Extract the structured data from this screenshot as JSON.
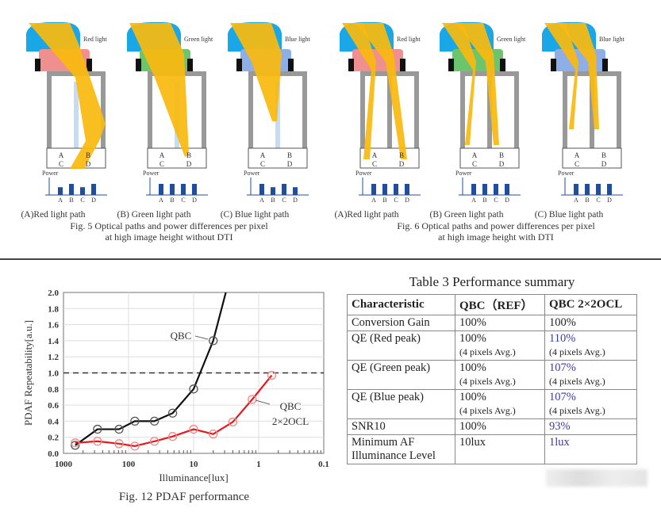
{
  "fig5": {
    "panels": [
      {
        "light_label": "Red light",
        "caption": "(A)Red light path",
        "filter_color": "#f08f8f",
        "power": [
          0.7,
          1,
          0.7,
          1
        ]
      },
      {
        "light_label": "Green light",
        "caption": "(B) Green light path",
        "filter_color": "#6cc56c",
        "power": [
          1,
          1,
          1,
          1
        ]
      },
      {
        "light_label": "Blue light",
        "caption": "(C) Blue light path",
        "filter_color": "#8eaee8",
        "power": [
          1,
          0.7,
          1,
          0.7
        ]
      }
    ],
    "caption_line1": "Fig. 5 Optical paths and power differences per pixel",
    "caption_line2": "at high image height without DTI"
  },
  "fig6": {
    "panels": [
      {
        "light_label": "Red light",
        "caption": "(A)Red light path",
        "filter_color": "#f08f8f",
        "power": [
          1,
          1,
          1,
          1
        ]
      },
      {
        "light_label": "Green light",
        "caption": "(B) Green light path",
        "filter_color": "#6cc56c",
        "power": [
          1,
          1,
          1,
          1
        ]
      },
      {
        "light_label": "Blue light",
        "caption": "(C) Blue light path",
        "filter_color": "#8eaee8",
        "power": [
          1,
          1,
          1,
          1
        ]
      }
    ],
    "caption_line1": "Fig. 6 Optical paths and power differences per pixel",
    "caption_line2": "at high image height with DTI"
  },
  "pixel_labels": [
    "A",
    "B",
    "C",
    "D"
  ],
  "power_label": "Power",
  "colors": {
    "lens": "#1aa7e8",
    "beam": "#f9b90f",
    "bar": "#1f4e9c",
    "qbc": "#111111",
    "ocl": "#e8181d"
  },
  "chart_data": {
    "type": "line",
    "title": "Fig. 12 PDAF performance",
    "xlabel": "Illuminance[lux]",
    "ylabel": "PDAF Repeatability[a.u.]",
    "xscale": "log",
    "xlim": [
      1000,
      0.1
    ],
    "ylim": [
      0,
      2.0
    ],
    "xticks": [
      "1000",
      "100",
      "10",
      "1",
      "0.1"
    ],
    "yticks": [
      "0.0",
      "0.2",
      "0.4",
      "0.6",
      "0.8",
      "1.0",
      "1.2",
      "1.4",
      "1.6",
      "1.8",
      "2.0"
    ],
    "reference_line": 1.0,
    "grid": true,
    "series": [
      {
        "name": "QBC",
        "label": "QBC",
        "x": [
          660,
          300,
          140,
          80,
          40,
          21,
          10,
          5
        ],
        "y": [
          0.1,
          0.3,
          0.3,
          0.4,
          0.4,
          0.5,
          0.8,
          1.4
        ],
        "line_end": {
          "x": 3.2,
          "y": 2.0
        }
      },
      {
        "name": "QBC 2×2OCL",
        "label_line1": "QBC",
        "label_line2": "2×2OCL",
        "x": [
          660,
          300,
          140,
          80,
          40,
          21,
          10,
          5,
          2.5,
          1.26,
          0.63
        ],
        "y": [
          0.13,
          0.15,
          0.12,
          0.09,
          0.15,
          0.21,
          0.3,
          0.24,
          0.39,
          0.67,
          0.97
        ]
      }
    ]
  },
  "table": {
    "title": "Table 3 Performance summary",
    "headers": [
      "Characteristic",
      "QBC（REF）",
      "QBC 2×2OCL"
    ],
    "rows": [
      {
        "c": "Conversion Gain",
        "ref": "100%",
        "ref_sub": "",
        "ocl": "100%",
        "ocl_sub": ""
      },
      {
        "c": "QE (Red peak)",
        "ref": "100%",
        "ref_sub": "(4 pixels Avg.)",
        "ocl": "110%",
        "ocl_sub": "(4 pixels Avg.)"
      },
      {
        "c": "QE (Green peak)",
        "ref": "100%",
        "ref_sub": "(4 pixels Avg.)",
        "ocl": "107%",
        "ocl_sub": "(4 pixels Avg.)"
      },
      {
        "c": "QE (Blue peak)",
        "ref": "100%",
        "ref_sub": "(4 pixels Avg.)",
        "ocl": "107%",
        "ocl_sub": "(4 pixels Avg.)"
      },
      {
        "c": "SNR10",
        "ref": "100%",
        "ref_sub": "",
        "ocl": "93%",
        "ocl_sub": ""
      },
      {
        "c": "Minimum AF Illuminance Level",
        "ref": "10lux",
        "ref_sub": "",
        "ocl": "1lux",
        "ocl_sub": ""
      }
    ]
  }
}
